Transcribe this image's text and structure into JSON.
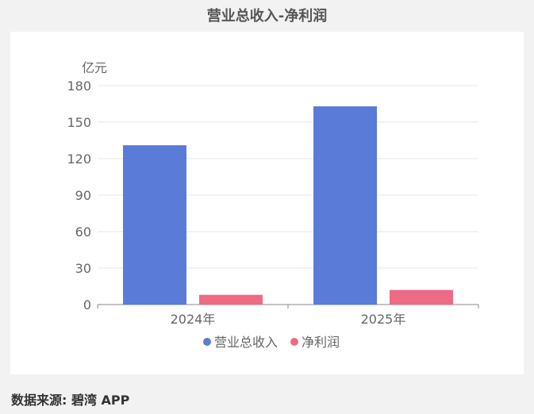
{
  "header": {
    "title": "营业总收入-净利润"
  },
  "footer": {
    "source": "数据来源: 碧湾 APP"
  },
  "colors": {
    "revenue": "#5b7bd9",
    "profit": "#ef6a84",
    "axis": "#888888",
    "grid": "#e6e6e6",
    "text": "#666666"
  },
  "chart_data": {
    "type": "bar",
    "title": "营业总收入-净利润",
    "ylabel": "亿元",
    "xlabel": "",
    "categories": [
      "2024年",
      "2025年"
    ],
    "series": [
      {
        "name": "营业总收入",
        "values": [
          131,
          163
        ]
      },
      {
        "name": "净利润",
        "values": [
          8,
          12
        ]
      }
    ],
    "ylim": [
      0,
      180
    ],
    "yticks": [
      0,
      30,
      60,
      90,
      120,
      150,
      180
    ],
    "grid": true,
    "legend": "bottom"
  }
}
